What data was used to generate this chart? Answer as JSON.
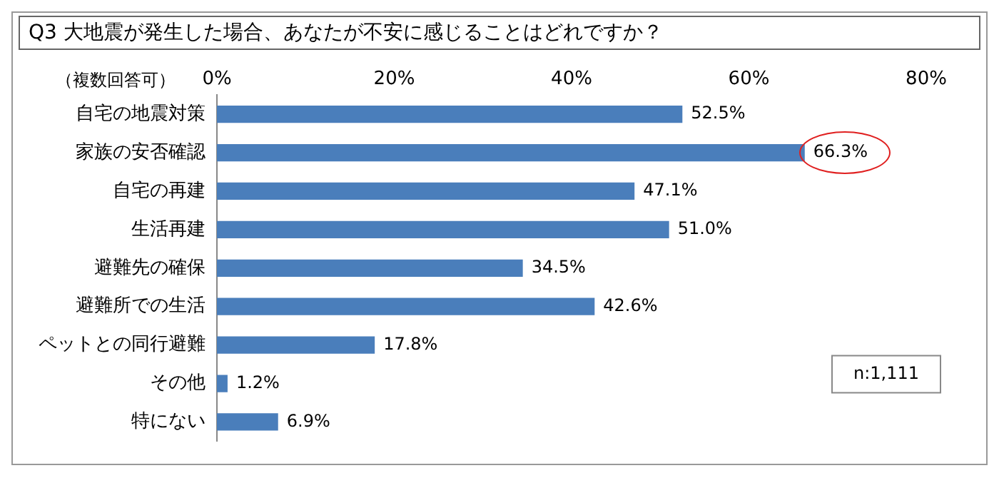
{
  "chart_data": {
    "type": "bar",
    "orientation": "horizontal",
    "title": "Q3 大地震が発生した場合、あなたが不安に感じることはどれですか？",
    "categories": [
      "自宅の地震対策",
      "家族の安否確認",
      "自宅の再建",
      "生活再建",
      "避難先の確保",
      "避難所での生活",
      "ペットとの同行避難",
      "その他",
      "特にない"
    ],
    "values": [
      52.5,
      66.3,
      47.1,
      51.0,
      34.5,
      42.6,
      17.8,
      1.2,
      6.9
    ],
    "value_labels": [
      "52.5%",
      "66.3%",
      "47.1%",
      "51.0%",
      "34.5%",
      "42.6%",
      "17.8%",
      "1.2%",
      "6.9%"
    ],
    "color": "#4a7ebb",
    "xlim": [
      0,
      80
    ],
    "xticks": [
      {
        "value": 0,
        "label": "0%"
      },
      {
        "value": 20,
        "label": "20%"
      },
      {
        "value": 40,
        "label": "40%"
      },
      {
        "value": 60,
        "label": "60%"
      },
      {
        "value": 80,
        "label": "80%"
      }
    ],
    "annotations": [
      "（複数回答可）",
      "n:1,111"
    ],
    "grid": false,
    "legend": false
  }
}
